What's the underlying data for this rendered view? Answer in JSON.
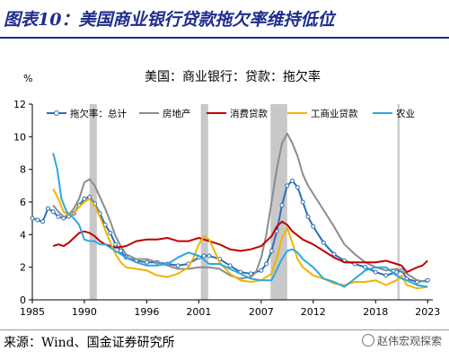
{
  "figure": {
    "title": "图表10：美国商业银行贷款拖欠率维持低位",
    "source": "来源：Wind、国金证券研究所",
    "watermark": "赵伟宏观探索"
  },
  "chart_data": {
    "type": "line",
    "title": "美国：商业银行：贷款：拖欠率",
    "ylabel": "%",
    "ylim": [
      0,
      12
    ],
    "yticks": [
      0,
      2,
      4,
      6,
      8,
      10,
      12
    ],
    "xlim": [
      1985,
      2023.5
    ],
    "xticks": [
      1985,
      1990,
      1996,
      2001,
      2007,
      2012,
      2018,
      2023
    ],
    "grid": false,
    "legend_position": "top",
    "recession_bands": [
      [
        1990.5,
        1991.2
      ],
      [
        2001.2,
        2001.9
      ],
      [
        2007.9,
        2009.5
      ],
      [
        2020.1,
        2020.3
      ]
    ],
    "series": [
      {
        "name": "拖欠率：总计",
        "color": "#2e6fb5",
        "marker": "circle",
        "x": [
          1985,
          1985.5,
          1986,
          1986.5,
          1987,
          1987.5,
          1988,
          1988.5,
          1989,
          1989.5,
          1990,
          1990.5,
          1991,
          1991.5,
          1992,
          1992.5,
          1993,
          1993.5,
          1994,
          1995,
          1996,
          1997,
          1998,
          1999,
          2000,
          2001,
          2001.5,
          2002,
          2003,
          2004,
          2005,
          2006,
          2007,
          2007.5,
          2008,
          2008.5,
          2009,
          2009.5,
          2010,
          2010.5,
          2011,
          2011.5,
          2012,
          2013,
          2014,
          2015,
          2016,
          2017,
          2018,
          2019,
          2020,
          2020.5,
          2021,
          2022,
          2023
        ],
        "values": [
          5.0,
          4.9,
          4.8,
          5.6,
          5.4,
          5.1,
          5.0,
          5.1,
          5.3,
          5.8,
          6.2,
          6.3,
          5.9,
          5.3,
          4.6,
          4.1,
          3.4,
          3.0,
          2.6,
          2.4,
          2.3,
          2.3,
          2.2,
          2.1,
          2.2,
          2.6,
          2.7,
          2.7,
          2.5,
          2.1,
          1.7,
          1.6,
          1.8,
          2.2,
          3.0,
          4.2,
          5.8,
          7.0,
          7.3,
          6.9,
          6.0,
          5.1,
          4.5,
          3.5,
          2.8,
          2.4,
          2.2,
          2.0,
          1.7,
          1.5,
          1.7,
          1.8,
          1.3,
          1.1,
          1.2
        ]
      },
      {
        "name": "房地产",
        "color": "#8c8c8c",
        "marker": "none",
        "x": [
          1987,
          1987.5,
          1988,
          1988.5,
          1989,
          1989.5,
          1990,
          1990.5,
          1991,
          1991.5,
          1992,
          1992.5,
          1993,
          1993.5,
          1994,
          1995,
          1996,
          1997,
          1998,
          1999,
          2000,
          2001,
          2002,
          2003,
          2004,
          2005,
          2006,
          2006.5,
          2007,
          2007.5,
          2008,
          2008.5,
          2009,
          2009.5,
          2010,
          2010.5,
          2011,
          2011.5,
          2012,
          2013,
          2014,
          2015,
          2016,
          2017,
          2018,
          2019,
          2020,
          2021,
          2022,
          2023
        ],
        "values": [
          5.8,
          5.4,
          5.1,
          5.2,
          5.6,
          6.2,
          7.2,
          7.4,
          7.0,
          6.3,
          5.6,
          4.8,
          3.9,
          3.3,
          2.8,
          2.5,
          2.5,
          2.3,
          2.1,
          1.9,
          1.9,
          2.0,
          2.0,
          1.9,
          1.5,
          1.3,
          1.4,
          1.7,
          2.6,
          4.0,
          6.0,
          8.0,
          9.6,
          10.2,
          9.6,
          8.8,
          7.7,
          7.0,
          6.5,
          5.5,
          4.5,
          3.4,
          2.8,
          2.3,
          2.0,
          1.8,
          1.9,
          1.6,
          1.2,
          1.1
        ]
      },
      {
        "name": "消费贷款",
        "color": "#c00000",
        "marker": "none",
        "x": [
          1987,
          1987.5,
          1988,
          1988.5,
          1989,
          1989.5,
          1990,
          1990.5,
          1991,
          1991.5,
          1992,
          1993,
          1994,
          1995,
          1996,
          1997,
          1998,
          1999,
          2000,
          2001,
          2002,
          2003,
          2004,
          2005,
          2006,
          2007,
          2007.5,
          2008,
          2008.5,
          2009,
          2009.5,
          2010,
          2011,
          2012,
          2013,
          2014,
          2015,
          2016,
          2017,
          2018,
          2019,
          2020,
          2020.5,
          2021,
          2022,
          2022.5,
          2023
        ],
        "values": [
          3.3,
          3.4,
          3.3,
          3.5,
          3.8,
          4.1,
          4.2,
          4.1,
          3.9,
          3.6,
          3.4,
          3.2,
          3.3,
          3.6,
          3.7,
          3.7,
          3.8,
          3.6,
          3.6,
          3.8,
          3.6,
          3.4,
          3.1,
          3.0,
          3.1,
          3.3,
          3.6,
          3.9,
          4.5,
          4.8,
          4.6,
          4.2,
          3.7,
          3.4,
          3.0,
          2.6,
          2.3,
          2.3,
          2.3,
          2.3,
          2.4,
          2.2,
          2.1,
          1.7,
          2.0,
          2.1,
          2.4
        ]
      },
      {
        "name": "工商业贷款",
        "color": "#f0b400",
        "marker": "none",
        "x": [
          1987,
          1987.5,
          1988,
          1988.5,
          1989,
          1989.5,
          1990,
          1990.5,
          1991,
          1991.5,
          1992,
          1992.5,
          1993,
          1993.5,
          1994,
          1995,
          1996,
          1997,
          1998,
          1999,
          2000,
          2000.5,
          2001,
          2001.5,
          2002,
          2002.5,
          2003,
          2004,
          2005,
          2006,
          2007,
          2008,
          2008.5,
          2009,
          2009.5,
          2010,
          2010.5,
          2011,
          2012,
          2013,
          2014,
          2015,
          2016,
          2017,
          2018,
          2019,
          2020,
          2020.5,
          2021,
          2022,
          2023
        ],
        "values": [
          6.8,
          6.2,
          5.4,
          5.2,
          5.3,
          5.7,
          6.0,
          6.2,
          5.8,
          5.1,
          4.3,
          3.5,
          2.8,
          2.3,
          2.0,
          1.9,
          1.8,
          1.5,
          1.4,
          1.6,
          2.0,
          2.6,
          3.4,
          3.9,
          3.7,
          3.0,
          2.3,
          1.6,
          1.2,
          1.1,
          1.2,
          1.6,
          2.6,
          3.8,
          4.4,
          3.5,
          2.5,
          2.0,
          1.5,
          1.3,
          1.0,
          0.9,
          1.1,
          1.1,
          1.2,
          0.9,
          1.2,
          1.5,
          0.9,
          0.7,
          0.8
        ]
      },
      {
        "name": "农业",
        "color": "#2aa9de",
        "marker": "none",
        "x": [
          1987,
          1987.4,
          1987.8,
          1988.3,
          1989,
          1989.5,
          1990,
          1990.5,
          1991,
          1991.5,
          1992,
          1993,
          1994,
          1995,
          1996,
          1997,
          1998,
          1999,
          2000,
          2001,
          2002,
          2003,
          2004,
          2005,
          2006,
          2007,
          2008,
          2009,
          2009.5,
          2010,
          2010.5,
          2011,
          2012,
          2013,
          2014,
          2015,
          2016,
          2017,
          2018,
          2019,
          2020,
          2020.5,
          2021,
          2022,
          2023
        ],
        "values": [
          9.0,
          8.0,
          6.2,
          5.4,
          5.0,
          4.6,
          3.7,
          3.6,
          3.6,
          3.4,
          3.4,
          3.0,
          2.6,
          2.3,
          2.1,
          2.1,
          2.2,
          2.6,
          2.9,
          2.7,
          2.2,
          2.2,
          1.9,
          1.6,
          1.3,
          1.2,
          1.2,
          2.5,
          3.0,
          3.1,
          2.9,
          2.5,
          2.0,
          1.3,
          1.1,
          0.8,
          1.3,
          1.8,
          2.0,
          2.0,
          1.5,
          1.3,
          1.2,
          0.9,
          0.8
        ]
      }
    ]
  }
}
